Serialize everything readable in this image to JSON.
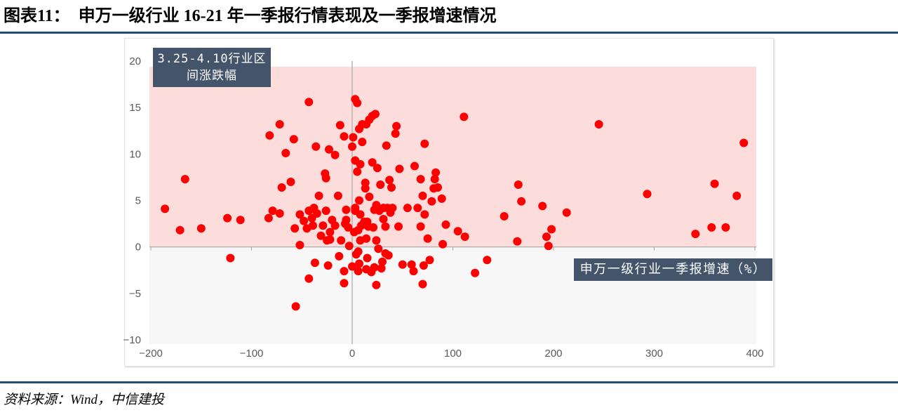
{
  "figure": {
    "number_label": "图表11：",
    "source": "资料来源：Wind，中信建投"
  },
  "chart_data": {
    "type": "scatter",
    "title": "申万一级行业 16-21 年一季报行情表现及一季报增速情况",
    "xlabel": "申万一级行业一季报增速（%）",
    "ylabel": "3.25-4.10行业区间涨跌幅",
    "xlim": [
      -200,
      400
    ],
    "ylim": [
      -10,
      20
    ],
    "xticks": [
      -200,
      -100,
      0,
      100,
      200,
      300,
      400
    ],
    "xtick_labels": [
      "−200",
      "−100",
      "0",
      "100",
      "200",
      "300",
      "400"
    ],
    "yticks": [
      20,
      15,
      10,
      5,
      0,
      -5,
      -10
    ],
    "ytick_labels": [
      "20",
      "15",
      "10",
      "5",
      "0",
      "−5",
      "−10"
    ],
    "grid": false,
    "x": [
      -186,
      -171,
      -166,
      -150,
      -124,
      -121,
      -111,
      -82,
      -83,
      -79,
      -72,
      -72,
      -70,
      -66,
      -61,
      -58,
      -57,
      -56,
      -52,
      -52,
      -48,
      -45,
      -43,
      -43,
      -43,
      -40,
      -38,
      -37,
      -36,
      -35,
      -39,
      -33,
      -31,
      -29,
      -27,
      -26,
      -26,
      -25,
      -24,
      -23,
      -22,
      -22,
      -20,
      -17,
      -17,
      -14,
      -13,
      -12,
      -11,
      -8,
      -8,
      -8,
      -7,
      -6,
      -6,
      -4,
      -3,
      0,
      0,
      1,
      2,
      3,
      3,
      3,
      3,
      4,
      5,
      5,
      6,
      6,
      6,
      7,
      7,
      7,
      8,
      8,
      8,
      9,
      10,
      10,
      12,
      13,
      13,
      14,
      14,
      14,
      15,
      15,
      16,
      17,
      17,
      19,
      20,
      20,
      21,
      22,
      22,
      23,
      24,
      24,
      24,
      25,
      26,
      27,
      28,
      29,
      30,
      31,
      31,
      33,
      33,
      34,
      35,
      36,
      37,
      38,
      39,
      40,
      43,
      44,
      46,
      47,
      50,
      55,
      59,
      61,
      62,
      65,
      68,
      68,
      70,
      70,
      71,
      72,
      72,
      75,
      77,
      79,
      81,
      82,
      83,
      85,
      89,
      90,
      93,
      105,
      111,
      112,
      122,
      134,
      151,
      164,
      165,
      168,
      189,
      193,
      195,
      198,
      213,
      245,
      293,
      341,
      357,
      360,
      371,
      382,
      389
    ],
    "y": [
      4.1,
      1.8,
      7.3,
      2.0,
      3.1,
      -1.2,
      2.9,
      12.0,
      3.1,
      3.9,
      13.2,
      3.6,
      6.4,
      10.1,
      7.0,
      11.6,
      2.0,
      -6.4,
      0.2,
      3.5,
      2.8,
      2.0,
      -3.4,
      15.6,
      3.9,
      3.1,
      4.2,
      -1.7,
      10.8,
      3.6,
      2.3,
      5.5,
      1.2,
      2.3,
      7.9,
      7.4,
      3.9,
      0.7,
      -2.0,
      10.5,
      1.6,
      0.8,
      2.9,
      9.9,
      2.3,
      5.5,
      -1.0,
      13.1,
      0.7,
      11.9,
      -3.9,
      -2.6,
      2.5,
      2.9,
      4.0,
      2.1,
      0.1,
      10.8,
      -2.1,
      11.8,
      1.6,
      9.3,
      4.2,
      15.9,
      3.9,
      -0.8,
      15.5,
      8.1,
      1.8,
      -0.5,
      -2.6,
      12.7,
      5.0,
      -1.8,
      8.9,
      0.7,
      3.5,
      2.3,
      11.3,
      13.2,
      2.7,
      6.3,
      6.9,
      13.2,
      0.9,
      -2.4,
      -1.2,
      2.7,
      2.2,
      13.7,
      5.4,
      -2.7,
      9.1,
      14.1,
      2.1,
      -2.2,
      4.0,
      14.3,
      4.5,
      0.7,
      -4.1,
      8.5,
      -0.2,
      3.9,
      6.7,
      -2.3,
      -1.6,
      3.0,
      4.2,
      -0.7,
      2.2,
      10.9,
      4.2,
      -0.9,
      7.2,
      3.7,
      6.4,
      4.2,
      12.2,
      13.0,
      2.2,
      8.4,
      -1.9,
      4.2,
      -1.9,
      -2.6,
      8.7,
      4.2,
      7.3,
      2.2,
      5.5,
      -4.0,
      -2.0,
      3.5,
      11.1,
      0.9,
      -1.4,
      4.9,
      6.3,
      7.3,
      8.0,
      6.4,
      5.2,
      0.3,
      2.4,
      1.7,
      14.0,
      1.1,
      -2.8,
      -1.4,
      3.3,
      0.6,
      6.7,
      4.9,
      4.4,
      1.1,
      0.1,
      1.9,
      3.7,
      13.2,
      5.7,
      1.4,
      2.1,
      6.8,
      2.1,
      5.5,
      11.2
    ]
  },
  "colors": {
    "point": "#ff0000",
    "positive_band": "#fddcdc",
    "negative_band": "#f7f7f7",
    "label_box": "#44546a",
    "rule": "#1f4e79",
    "axis": "#a6a6a6",
    "tick_text": "#595959"
  }
}
